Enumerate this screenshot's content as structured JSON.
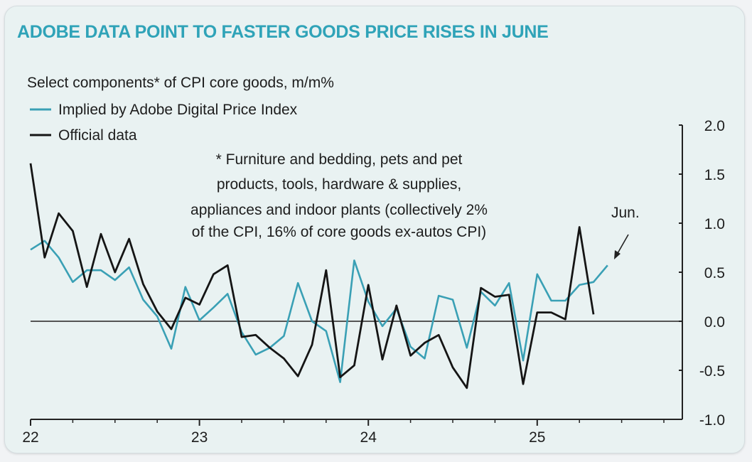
{
  "chart_data": {
    "type": "line",
    "title": "ADOBE DATA POINT TO FASTER GOODS PRICE RISES IN JUNE",
    "subtitle": "Select components* of CPI core goods, m/m%",
    "footnote_lines": [
      "* Furniture and bedding, pets and pet",
      "products, tools, hardware & supplies,",
      "appliances and indoor plants (collectively 2%",
      "of the CPI, 16% of core goods ex-autos CPI)"
    ],
    "annotation": "Jun.",
    "ylim": [
      -1.0,
      2.0
    ],
    "yticks": [
      "2.0",
      "1.5",
      "1.0",
      "0.5",
      "0.0",
      "-0.5",
      "-1.0"
    ],
    "xticks": [
      {
        "label": "22",
        "month_index": 0
      },
      {
        "label": "23",
        "month_index": 12
      },
      {
        "label": "24",
        "month_index": 24
      },
      {
        "label": "25",
        "month_index": 36
      }
    ],
    "x_start": "Jan 2022",
    "series": [
      {
        "name": "Implied by Adobe Digital Price Index",
        "color": "#3aa0b5",
        "values": [
          0.73,
          0.82,
          0.65,
          0.4,
          0.52,
          0.52,
          0.42,
          0.55,
          0.22,
          0.05,
          -0.28,
          0.35,
          0.01,
          0.14,
          0.28,
          -0.11,
          -0.34,
          -0.27,
          -0.15,
          0.39,
          0.0,
          -0.1,
          -0.62,
          0.62,
          0.2,
          -0.05,
          0.13,
          -0.26,
          -0.38,
          0.26,
          0.22,
          -0.27,
          0.3,
          0.16,
          0.39,
          -0.4,
          0.48,
          0.21,
          0.21,
          0.37,
          0.4,
          0.57
        ]
      },
      {
        "name": "Official data",
        "color": "#151515",
        "values": [
          1.61,
          0.65,
          1.1,
          0.92,
          0.35,
          0.89,
          0.5,
          0.84,
          0.38,
          0.1,
          -0.08,
          0.24,
          0.17,
          0.48,
          0.57,
          -0.16,
          -0.14,
          -0.27,
          -0.38,
          -0.56,
          -0.24,
          0.52,
          -0.57,
          -0.45,
          0.37,
          -0.39,
          0.16,
          -0.35,
          -0.22,
          -0.14,
          -0.47,
          -0.68,
          0.34,
          0.25,
          0.27,
          -0.64,
          0.09,
          0.09,
          0.02,
          0.96,
          0.07
        ]
      }
    ]
  }
}
